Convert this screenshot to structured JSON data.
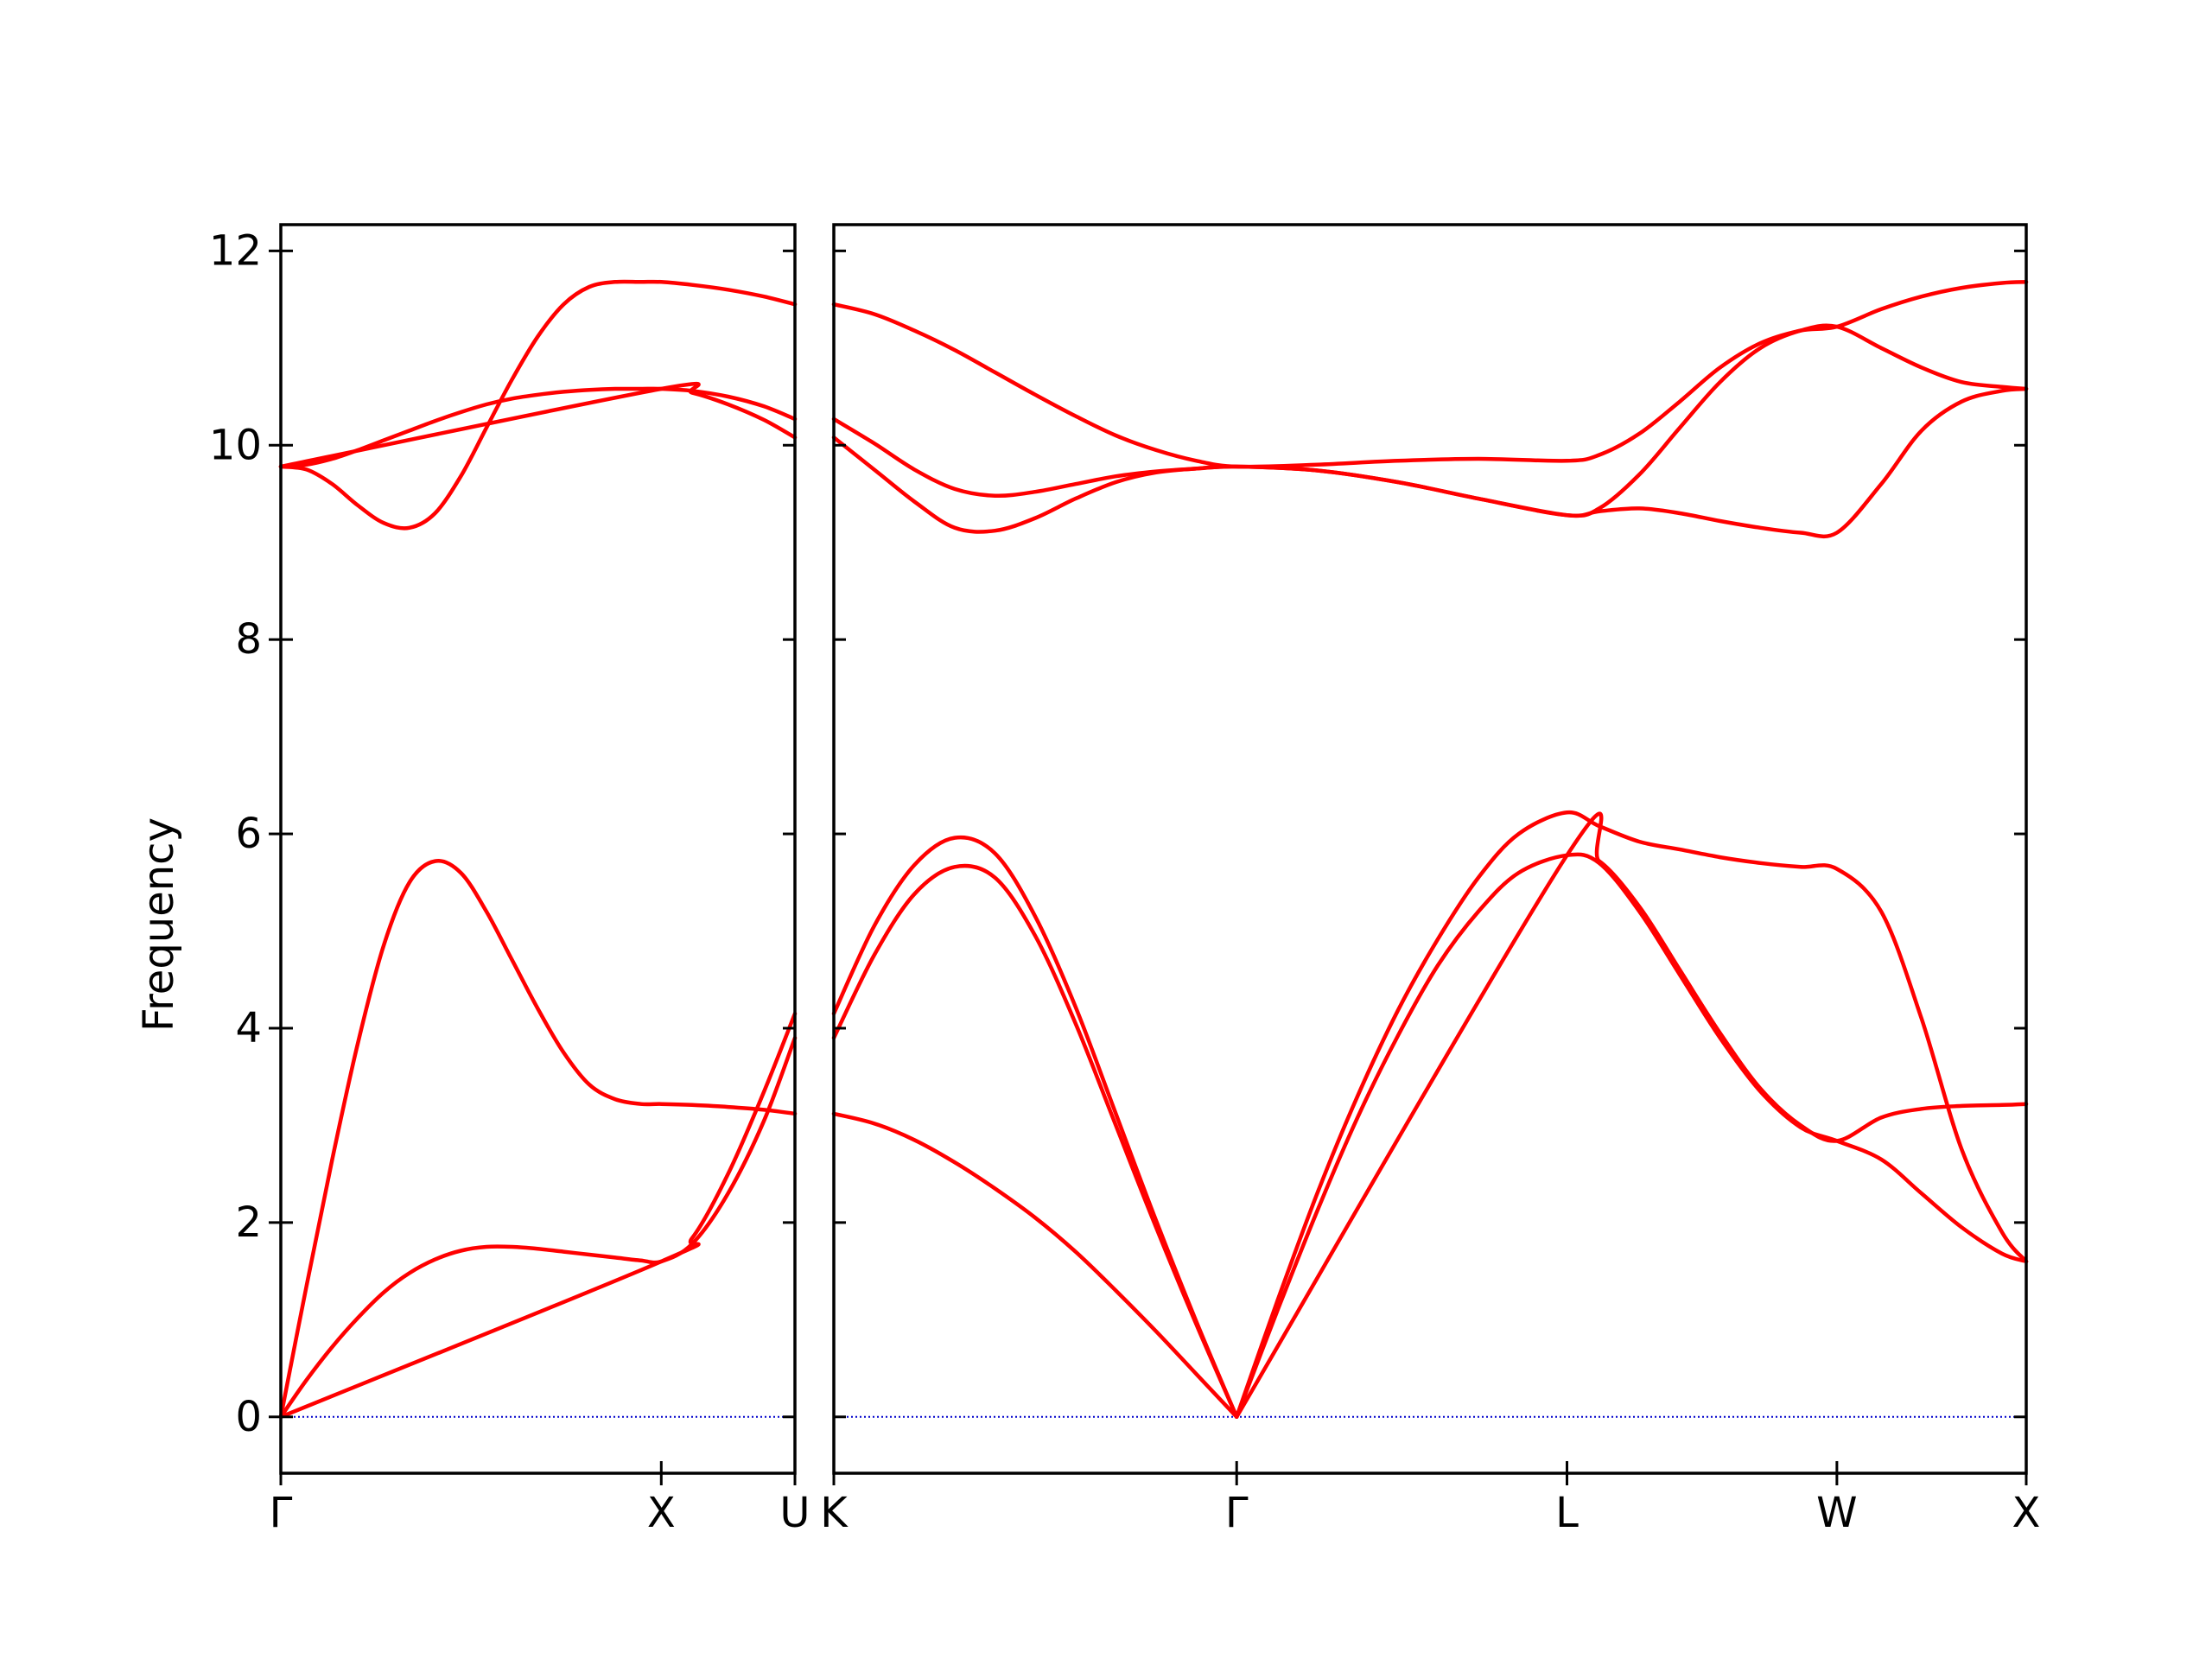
{
  "chart_data": {
    "type": "line",
    "ylabel": "Frequency",
    "ylim": [
      -0.58,
      12.27
    ],
    "yticks": [
      0,
      2,
      4,
      6,
      8,
      10,
      12
    ],
    "grid": false,
    "legend": "none",
    "colors": {
      "bands": "#ff0000",
      "zero_line": "#0000cc",
      "axes": "#000000"
    },
    "panels": [
      {
        "name": "Γ-X-U",
        "xlim": [
          0,
          1.0
        ],
        "xticks": [
          {
            "x": 0,
            "label": "Γ"
          },
          {
            "x": 0.74,
            "label": "X"
          },
          {
            "x": 1.0,
            "label": "U"
          }
        ],
        "series": [
          {
            "x": [
              0,
              0.05,
              0.1,
              0.15,
              0.2,
              0.25,
              0.3,
              0.35,
              0.4,
              0.45,
              0.5,
              0.55,
              0.6,
              0.65,
              0.7,
              0.74,
              0.8,
              0.87,
              0.94,
              1.0
            ],
            "values": [
              0,
              0.38,
              0.72,
              1.02,
              1.28,
              1.48,
              1.62,
              1.71,
              1.75,
              1.75,
              1.73,
              1.7,
              1.67,
              1.64,
              1.61,
              1.6,
              1.78,
              2.3,
              3.05,
              3.9
            ]
          },
          {
            "x": [
              0,
              0.05,
              0.1,
              0.15,
              0.2,
              0.25,
              0.3,
              0.35,
              0.4,
              0.45,
              0.5,
              0.55,
              0.6,
              0.65,
              0.7,
              0.74,
              0.8,
              0.87,
              0.94,
              1.0
            ],
            "values": [
              0,
              1.35,
              2.65,
              3.85,
              4.85,
              5.5,
              5.72,
              5.6,
              5.2,
              4.7,
              4.2,
              3.75,
              3.42,
              3.27,
              3.22,
              3.22,
              3.21,
              3.19,
              3.16,
              3.12
            ]
          },
          {
            "x": [
              0,
              0.74,
              0.8,
              0.87,
              0.94,
              1.0
            ],
            "values": [
              0,
              1.6,
              1.84,
              2.5,
              3.35,
              4.15
            ]
          },
          {
            "x": [
              0,
              0.05,
              0.1,
              0.15,
              0.2,
              0.25,
              0.3,
              0.35,
              0.4,
              0.45,
              0.5,
              0.55,
              0.6,
              0.65,
              0.7,
              0.74,
              0.8,
              0.87,
              0.94,
              1.0
            ],
            "values": [
              9.78,
              9.75,
              9.6,
              9.38,
              9.2,
              9.15,
              9.3,
              9.68,
              10.18,
              10.68,
              11.12,
              11.45,
              11.63,
              11.68,
              11.68,
              11.68,
              11.65,
              11.6,
              11.53,
              11.45
            ]
          },
          {
            "x": [
              0,
              0.05,
              0.1,
              0.15,
              0.2,
              0.25,
              0.3,
              0.35,
              0.4,
              0.45,
              0.5,
              0.55,
              0.6,
              0.65,
              0.7,
              0.74,
              0.8,
              0.87,
              0.94,
              1.0
            ],
            "values": [
              9.78,
              9.8,
              9.86,
              9.95,
              10.05,
              10.15,
              10.25,
              10.34,
              10.42,
              10.48,
              10.52,
              10.55,
              10.57,
              10.58,
              10.58,
              10.58,
              10.56,
              10.5,
              10.4,
              10.27
            ]
          },
          {
            "x": [
              0,
              0.74,
              0.8,
              0.87,
              0.94,
              1.0
            ],
            "values": [
              9.78,
              10.58,
              10.54,
              10.42,
              10.26,
              10.08
            ]
          }
        ]
      },
      {
        "name": "K-Γ-L-W-X",
        "xlim": [
          0,
          2.96
        ],
        "xticks": [
          {
            "x": 0,
            "label": "K"
          },
          {
            "x": 1.0,
            "label": "Γ"
          },
          {
            "x": 1.82,
            "label": "L"
          },
          {
            "x": 2.49,
            "label": "W"
          },
          {
            "x": 2.96,
            "label": "X"
          }
        ],
        "series": [
          {
            "x": [
              0,
              0.1,
              0.2,
              0.3,
              0.4,
              0.5,
              0.6,
              0.7,
              0.8,
              0.9,
              1.0
            ],
            "values": [
              3.12,
              3.02,
              2.85,
              2.62,
              2.35,
              2.05,
              1.7,
              1.3,
              0.88,
              0.44,
              0
            ]
          },
          {
            "x": [
              0,
              0.1,
              0.2,
              0.3,
              0.4,
              0.5,
              0.6,
              0.7,
              0.8,
              0.9,
              1.0
            ],
            "values": [
              3.9,
              4.75,
              5.38,
              5.66,
              5.55,
              4.95,
              4.05,
              3.0,
              1.95,
              0.95,
              0
            ]
          },
          {
            "x": [
              0,
              0.1,
              0.2,
              0.3,
              0.4,
              0.5,
              0.6,
              0.7,
              0.8,
              0.9,
              1.0
            ],
            "values": [
              4.15,
              5.05,
              5.68,
              5.96,
              5.8,
              5.15,
              4.22,
              3.12,
              2.02,
              0.98,
              0
            ]
          },
          {
            "x": [
              1.0,
              1.1,
              1.2,
              1.3,
              1.4,
              1.5,
              1.6,
              1.7,
              1.82,
              1.9,
              2.0,
              2.1,
              2.2,
              2.3,
              2.4,
              2.49,
              2.6,
              2.7,
              2.8,
              2.9,
              2.96
            ],
            "values": [
              0,
              1.08,
              2.12,
              3.08,
              3.92,
              4.65,
              5.2,
              5.6,
              5.78,
              5.7,
              5.2,
              4.55,
              3.9,
              3.35,
              2.98,
              2.84,
              2.65,
              2.3,
              1.95,
              1.68,
              1.6
            ]
          },
          {
            "x": [
              1.0,
              1.1,
              1.2,
              1.3,
              1.4,
              1.5,
              1.6,
              1.7,
              1.82,
              1.9,
              2.0,
              2.1,
              2.2,
              2.3,
              2.4,
              2.49,
              2.6,
              2.7,
              2.8,
              2.9,
              2.96
            ],
            "values": [
              0,
              1.18,
              2.3,
              3.3,
              4.18,
              4.92,
              5.55,
              6.0,
              6.22,
              6.08,
              5.92,
              5.84,
              5.76,
              5.7,
              5.66,
              5.64,
              5.2,
              4.1,
              2.75,
              1.9,
              1.6
            ]
          },
          {
            "x": [
              1.0,
              1.82,
              1.9,
              2.0,
              2.1,
              2.2,
              2.3,
              2.4,
              2.49,
              2.6,
              2.7,
              2.8,
              2.9,
              2.96
            ],
            "values": [
              0,
              5.78,
              5.72,
              5.25,
              4.6,
              3.95,
              3.38,
              3.0,
              2.84,
              3.08,
              3.17,
              3.2,
              3.21,
              3.22
            ]
          },
          {
            "x": [
              0,
              0.1,
              0.2,
              0.3,
              0.4,
              0.5,
              0.6,
              0.7,
              0.8,
              0.9,
              1.0,
              1.2,
              1.4,
              1.6,
              1.82,
              1.9,
              2.0,
              2.1,
              2.2,
              2.3,
              2.4,
              2.49,
              2.6,
              2.7,
              2.8,
              2.9,
              2.96
            ],
            "values": [
              11.45,
              11.35,
              11.18,
              10.98,
              10.75,
              10.52,
              10.3,
              10.1,
              9.95,
              9.84,
              9.78,
              9.8,
              9.84,
              9.86,
              9.84,
              9.9,
              10.12,
              10.45,
              10.8,
              11.05,
              11.18,
              11.22,
              11.4,
              11.53,
              11.62,
              11.67,
              11.68
            ]
          },
          {
            "x": [
              0,
              0.1,
              0.2,
              0.3,
              0.4,
              0.5,
              0.6,
              0.7,
              0.8,
              0.9,
              1.0,
              1.2,
              1.4,
              1.6,
              1.82,
              1.9,
              2.0,
              2.1,
              2.2,
              2.3,
              2.4,
              2.49,
              2.6,
              2.7,
              2.8,
              2.9,
              2.96
            ],
            "values": [
              10.27,
              10.02,
              9.75,
              9.55,
              9.48,
              9.52,
              9.6,
              9.68,
              9.73,
              9.76,
              9.78,
              9.74,
              9.62,
              9.45,
              9.28,
              9.35,
              9.7,
              10.18,
              10.65,
              11.0,
              11.18,
              11.22,
              11.0,
              10.8,
              10.65,
              10.6,
              10.58
            ]
          },
          {
            "x": [
              0,
              0.1,
              0.2,
              0.3,
              0.4,
              0.5,
              0.6,
              0.7,
              0.8,
              0.9,
              1.0,
              1.2,
              1.4,
              1.6,
              1.82,
              1.9,
              2.0,
              2.1,
              2.2,
              2.3,
              2.4,
              2.49,
              2.6,
              2.7,
              2.8,
              2.9,
              2.96
            ],
            "values": [
              10.08,
              9.75,
              9.42,
              9.15,
              9.12,
              9.25,
              9.45,
              9.62,
              9.72,
              9.76,
              9.78,
              9.74,
              9.62,
              9.45,
              9.28,
              9.32,
              9.35,
              9.3,
              9.22,
              9.15,
              9.1,
              9.1,
              9.6,
              10.15,
              10.45,
              10.56,
              10.58
            ]
          }
        ]
      }
    ]
  }
}
